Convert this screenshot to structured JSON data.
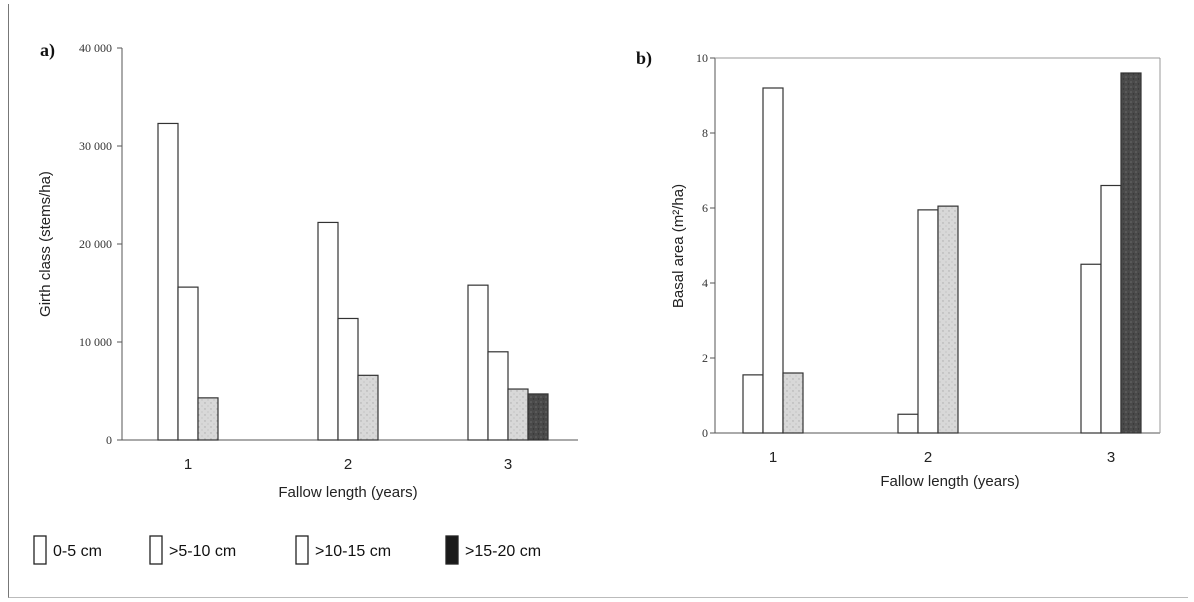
{
  "legend": {
    "items": [
      {
        "label": "0-5 cm",
        "fill": "#ffffff"
      },
      {
        "label": ">5-10 cm",
        "fill": "#ffffff"
      },
      {
        "label": ">10-15 cm",
        "fill": "#ffffff"
      },
      {
        "label": ">15-20 cm",
        "fill": "#1a1a1a"
      }
    ]
  },
  "chart_data": [
    {
      "type": "bar",
      "panel_label": "a)",
      "title": "",
      "xlabel": "Fallow length (years)",
      "ylabel": "Girth class (stems/ha)",
      "categories": [
        "1",
        "2",
        "3"
      ],
      "ylim": [
        0,
        40000
      ],
      "yticks": [
        "0",
        "10 000",
        "20 000",
        "30 000",
        "40 000"
      ],
      "ytick_values": [
        0,
        10000,
        20000,
        30000,
        40000
      ],
      "series": [
        {
          "name": "0-5 cm",
          "values": [
            32300,
            22200,
            15800
          ]
        },
        {
          "name": ">5-10 cm",
          "values": [
            15600,
            12400,
            9000
          ]
        },
        {
          "name": ">10-15 cm",
          "values": [
            4300,
            6600,
            5200
          ]
        },
        {
          "name": ">15-20 cm",
          "values": [
            null,
            null,
            4700
          ]
        }
      ]
    },
    {
      "type": "bar",
      "panel_label": "b)",
      "title": "",
      "xlabel": "Fallow length (years)",
      "ylabel": "Basal area (m²/ha)",
      "categories": [
        "1",
        "2",
        "3"
      ],
      "ylim": [
        0,
        10
      ],
      "yticks": [
        "0",
        "2",
        "4",
        "6",
        "8",
        "10"
      ],
      "ytick_values": [
        0,
        2,
        4,
        6,
        8,
        10
      ],
      "series": [
        {
          "name": "0-5 cm",
          "values": [
            1.55,
            0.5,
            4.5
          ]
        },
        {
          "name": ">5-10 cm",
          "values": [
            9.2,
            5.95,
            6.6
          ]
        },
        {
          "name": ">10-15 cm",
          "values": [
            1.6,
            6.05,
            null
          ]
        },
        {
          "name": ">15-20 cm",
          "values": [
            null,
            null,
            9.6
          ]
        }
      ]
    }
  ]
}
